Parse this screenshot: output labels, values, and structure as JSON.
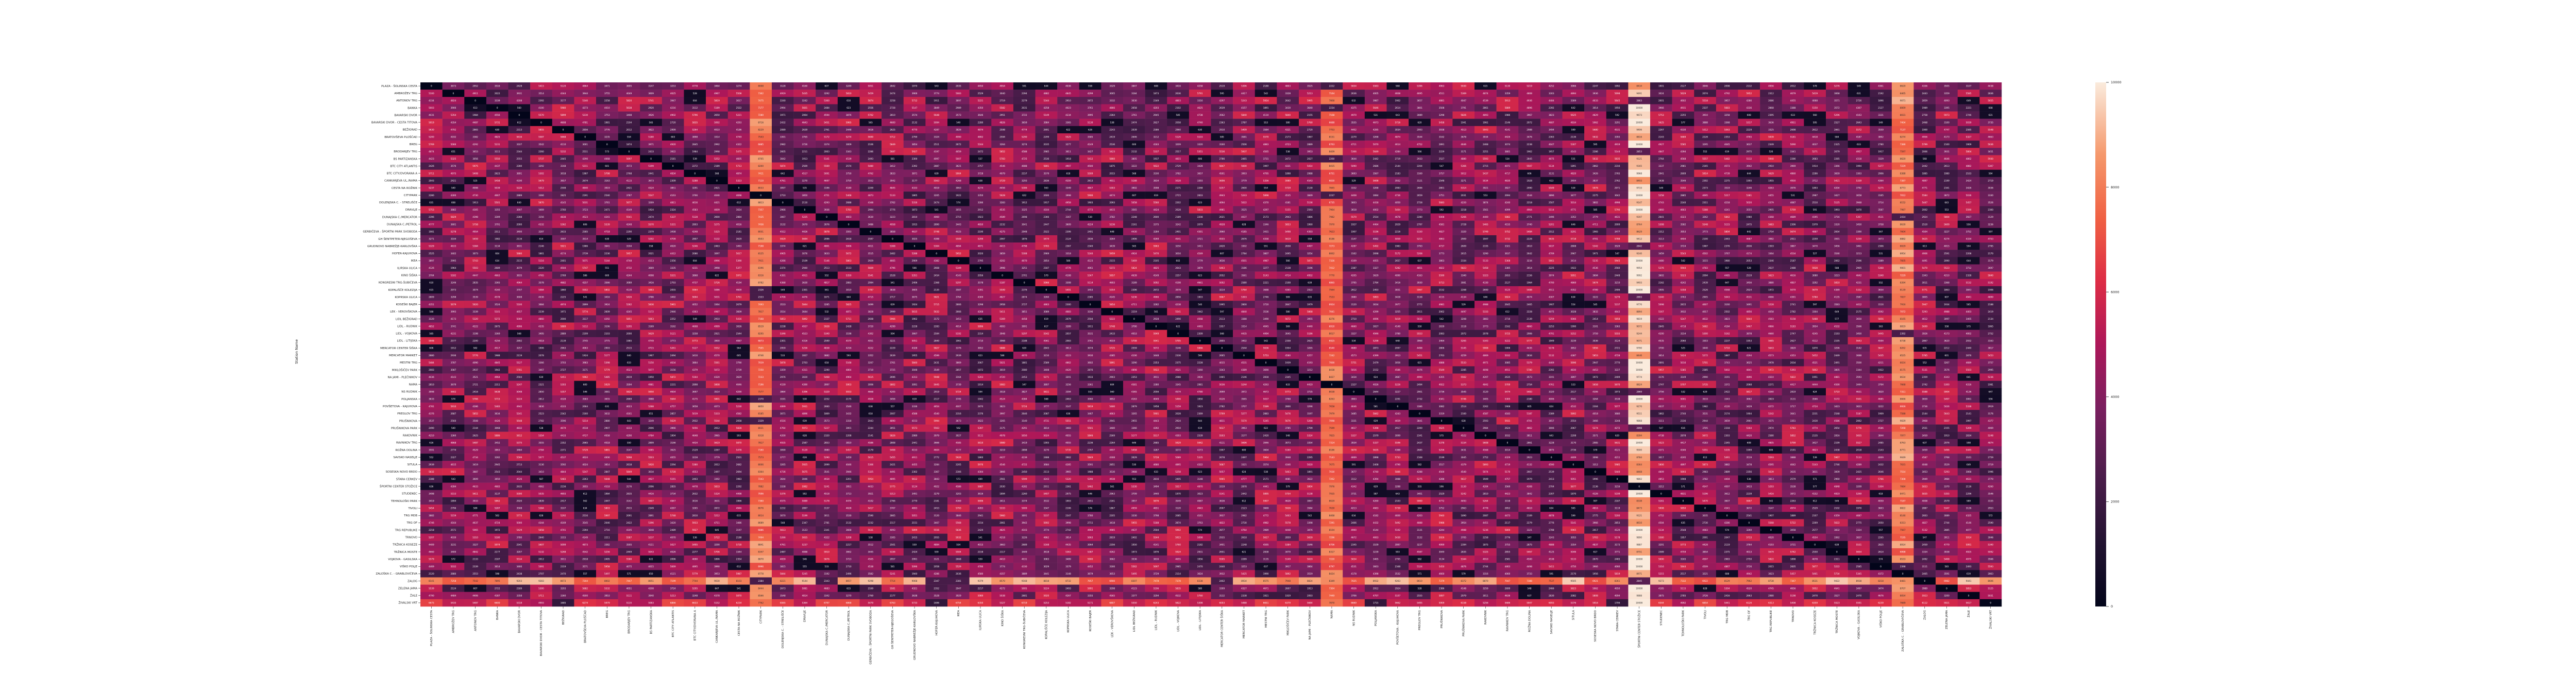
{
  "chart_data": {
    "type": "heatmap",
    "title": "",
    "xlabel": "",
    "ylabel": "Station Name",
    "colormap": "rocket",
    "vlim": [
      0,
      10000
    ],
    "colorbar_ticks": [
      0,
      2000,
      4000,
      6000,
      8000,
      10000
    ],
    "annotated_cells": true,
    "diagonal_value": 0,
    "rows": [
      "PLAZA - ŠOLINSKA CESTA",
      "AMBROŽEV TRG",
      "ANTONOV TRG",
      "BANKA",
      "BAVARSKI DVOR",
      "BAVARSKI DVOR - CESTA TITOVA",
      "BEŽIGRAD",
      "BRATOVŠEVA PLOŠČAD",
      "BREG",
      "BRODARJEV TRG",
      "BS PARTIZANSKA",
      "BTC CITY ATLANTIS",
      "BTC CITY/DVORANA A",
      "CANKARJEVA UL./NAMA",
      "CESTA NA ROŽNIK",
      "CITYPARK",
      "DOLENJSKA C. - STRELIŠČE",
      "DRAVLJE",
      "DUNAJSKA C./MERCATOR",
      "DUNAJSKA C./PETROL",
      "GERBIČEVA - ŠPORTNI PARK SVOBODA",
      "GH ŠENTPETER-NJEGOŠEVA",
      "GRUDNOVO NABREŽJE-KARLOVŠKA",
      "HOFER-KAJUHOVA",
      "IKEA",
      "ILIRSKA ULICA",
      "KINO ŠIŠKA",
      "KONGRESNI TRG-ŠUBIČEVA",
      "KOPALIŠČE KOLEZIJA",
      "KOPRSKA ULICA",
      "KOSEŠKI BAJER",
      "LEK - VEROVŠKOVA",
      "LIDL BEŽIGRAD",
      "LIDL - RUDNIK",
      "LIDL - VOJKOVA",
      "LIDL - LITIJSKA",
      "MERCATOR CENTER ŠIŠKA",
      "MERCATOR MARKET",
      "MESTNI TRG",
      "MIKLOŠIČEV PARK",
      "NA JAMI - PLEČNIKOV",
      "NAMA",
      "NS RUDNIK",
      "POLJANSKA",
      "POVŠETOVA - KAJUHOVA",
      "PREGLOV TRG",
      "PRUŠNIKOVA",
      "PRUŠNIKOVA PARK",
      "RAKOVNIK",
      "RAVNIKOV TRG",
      "ROŽNA DOLINA",
      "SAVSKO NASELJE",
      "SITULA",
      "SOSESKA NOVO BRDO",
      "STARA CERKEV",
      "ŠPORTNI CENTER STOŽICE",
      "STUDENEC",
      "TEHNOLOŠKI PARK",
      "TIVOLI",
      "TRG MDB",
      "TRG OF",
      "TRG REPUBLIKE",
      "TRNOVO",
      "TRŽNICA KOSEZE",
      "TRŽNICA MOSTE",
      "VOJKOVA - GASILSKA",
      "VIŠKO POLJE",
      "ZALOŠKA C. - GRABLOVIČEVA",
      "ZALOG",
      "ZELENA JAMA",
      "ŽALE",
      "ŽIVALSKI VRT"
    ],
    "columns": [
      "PLAZA - ŠOLINSKA CESTA",
      "AMBROŽEV TRG",
      "ANTONOV TRG",
      "BANKA",
      "BAVARSKI DVOR",
      "BAVARSKI DVOR - CESTA TITOVA",
      "BEŽIGRAD",
      "BRATOVŠEVA PLOŠČAD",
      "BREG",
      "BRODARJEV TRG",
      "BS PARTIZANSKA",
      "BTC CITY ATLANTIS",
      "BTC CITY/DVORANA A",
      "CANKARJEVA UL./NAMA",
      "CESTA NA ROŽNIK",
      "CITYPARK",
      "DOLENJSKA C. - STRELIŠČE",
      "DRAVLJE",
      "DUNAJSKA C./MERCATOR",
      "DUNAJSKA C./PETROL",
      "GERBIČEVA - ŠPORTNI PARK SVOBODA",
      "GH ŠENTPETER-NJEGOŠEVA",
      "GRUDNOVO NABREŽJE-KARLOVŠKA",
      "HOFER-KAJUHOVA",
      "IKEA",
      "ILIRSKA ULICA",
      "KINO ŠIŠKA",
      "KONGRESNI TRG-ŠUBIČEVA",
      "KOPALIŠČE KOLEZIJA",
      "KOPRSKA ULICA",
      "KOSEŠKI BAJER",
      "LEK - VEROVŠKOVA",
      "LIDL BEŽIGRAD",
      "LIDL - RUDNIK",
      "LIDL - VOJKOVA",
      "LIDL - LITIJSKA",
      "MERCATOR CENTER ŠIŠKA",
      "MERCATOR MARKET",
      "MESTNI TRG",
      "MIKLOŠIČEV PARK",
      "NA JAMI - PLEČNIKOV",
      "NAMA",
      "NS RUDNIK",
      "POLJANSKA",
      "POVŠETOVA - KAJUHOVA",
      "PREGLOV TRG",
      "PRUŠNIKOVA",
      "PRUŠNIKOVA PARK",
      "RAKOVNIK",
      "RAVNIKOV TRG",
      "ROŽNA DOLINA",
      "SAVSKO NASELJE",
      "SITULA",
      "SOSESKA NOVO BRDO",
      "STARA CERKEV",
      "ŠPORTNI CENTER STOŽICE",
      "STUDENEC",
      "TEHNOLOŠKI PARK",
      "TIVOLI",
      "TRG MDB",
      "TRG OF",
      "TRG REPUBLIKE",
      "TRNOVO",
      "TRŽNICA KOSEZE",
      "TRŽNICA MOSTE",
      "VOJKOVA - GASILSKA",
      "VIŠKO POLJE",
      "ZALOŠKA C. - GRABLOVIČEVA",
      "ZALOG",
      "ZELENA JAMA",
      "ŽALE",
      "ŽIVALSKI VRT"
    ],
    "highlight_columns": [
      {
        "column": "ŠPORTNI CENTER STOŽICE",
        "approx_values": 9500
      },
      {
        "column": "CITYPARK",
        "approx_values": 7800
      },
      {
        "column": "NAMA",
        "approx_values": 7400
      },
      {
        "column": "ZALOŠKA C. - GRABLOVIČEVA",
        "approx_values": 7900
      }
    ],
    "highlight_rows": [
      {
        "row": "ZALOG",
        "approx_values": 8300
      },
      {
        "row": "ŽIVALSKI VRT",
        "approx_values": 6000
      }
    ]
  }
}
